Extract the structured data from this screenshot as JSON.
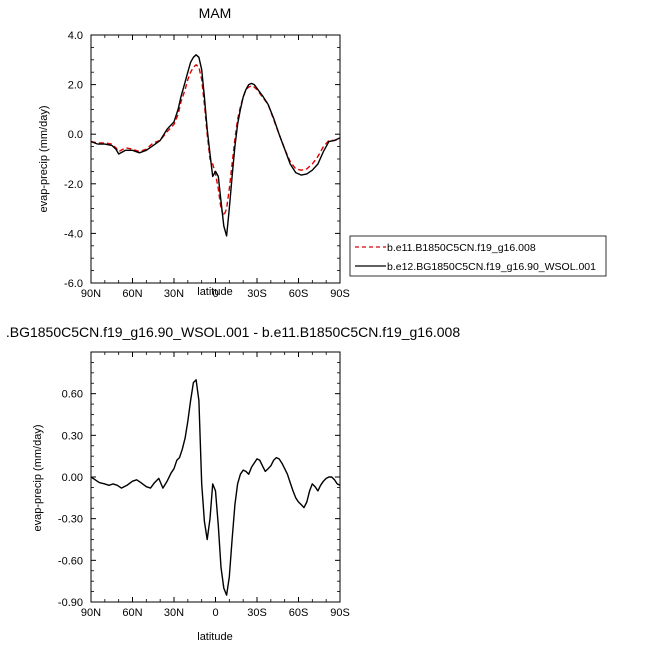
{
  "chart_data": [
    {
      "type": "line",
      "title": "MAM",
      "xlabel": "latitude",
      "ylabel": "evap-precip (mm/day)",
      "xlim": [
        -90,
        90
      ],
      "ylim": [
        -6,
        4
      ],
      "x_ticks": [
        -90,
        -60,
        -30,
        0,
        30,
        60,
        90
      ],
      "x_tick_labels": [
        "90N",
        "60N",
        "30N",
        "0",
        "30S",
        "60S",
        "90S"
      ],
      "y_ticks": [
        -6,
        -4,
        -2,
        0,
        2,
        4
      ],
      "y_tick_labels": [
        "-6.0",
        "-4.0",
        "-2.0",
        "0.0",
        "2.0",
        "4.0"
      ],
      "legend_position": "right",
      "series": [
        {
          "name": "b.e11.B1850C5CN.f19_g16.008",
          "color": "#dd0000",
          "dash": "dashed",
          "x": [
            -90,
            -85,
            -80,
            -75,
            -72,
            -70,
            -65,
            -60,
            -55,
            -50,
            -45,
            -40,
            -35,
            -30,
            -27,
            -25,
            -22,
            -20,
            -18,
            -16,
            -14,
            -12,
            -10,
            -8,
            -6,
            -4,
            -2,
            0,
            2,
            4,
            6,
            8,
            10,
            12,
            14,
            16,
            18,
            20,
            22,
            24,
            26,
            28,
            30,
            34,
            38,
            42,
            46,
            50,
            54,
            58,
            62,
            66,
            70,
            74,
            78,
            82,
            86,
            90
          ],
          "y": [
            -0.3,
            -0.35,
            -0.35,
            -0.4,
            -0.55,
            -0.7,
            -0.55,
            -0.6,
            -0.7,
            -0.6,
            -0.35,
            -0.25,
            0.1,
            0.4,
            0.8,
            1.3,
            1.8,
            2.2,
            2.5,
            2.7,
            2.8,
            2.7,
            2.2,
            1.2,
            0.0,
            -1.0,
            -1.2,
            -1.6,
            -2.2,
            -3.0,
            -3.3,
            -3.0,
            -2.2,
            -1.2,
            -0.2,
            0.6,
            1.1,
            1.5,
            1.8,
            1.9,
            1.95,
            1.9,
            1.8,
            1.5,
            1.2,
            0.6,
            0.0,
            -0.6,
            -1.1,
            -1.4,
            -1.45,
            -1.4,
            -1.2,
            -0.9,
            -0.5,
            -0.25,
            -0.25,
            -0.2
          ]
        },
        {
          "name": "b.e12.BG1850C5CN.f19_g16.90_WSOL.001",
          "color": "#000000",
          "dash": "solid",
          "x": [
            -90,
            -85,
            -80,
            -75,
            -72,
            -70,
            -65,
            -60,
            -55,
            -50,
            -45,
            -40,
            -35,
            -30,
            -27,
            -25,
            -22,
            -20,
            -18,
            -16,
            -14,
            -12,
            -10,
            -8,
            -6,
            -4,
            -2,
            0,
            2,
            4,
            6,
            8,
            10,
            12,
            14,
            16,
            18,
            20,
            22,
            24,
            26,
            28,
            30,
            34,
            38,
            42,
            46,
            50,
            54,
            58,
            62,
            66,
            70,
            74,
            78,
            82,
            86,
            90
          ],
          "y": [
            -0.3,
            -0.4,
            -0.4,
            -0.45,
            -0.6,
            -0.8,
            -0.65,
            -0.65,
            -0.75,
            -0.65,
            -0.45,
            -0.25,
            0.2,
            0.5,
            1.0,
            1.5,
            2.1,
            2.5,
            2.9,
            3.1,
            3.2,
            3.1,
            2.6,
            1.5,
            0.2,
            -0.8,
            -1.7,
            -1.5,
            -1.7,
            -2.7,
            -3.7,
            -4.1,
            -3.0,
            -1.7,
            -0.5,
            0.4,
            1.0,
            1.5,
            1.8,
            2.0,
            2.05,
            2.0,
            1.85,
            1.55,
            1.2,
            0.65,
            0.0,
            -0.6,
            -1.2,
            -1.55,
            -1.65,
            -1.6,
            -1.45,
            -1.2,
            -0.7,
            -0.3,
            -0.25,
            -0.15
          ]
        }
      ]
    },
    {
      "type": "line",
      "title": ".BG1850C5CN.f19_g16.90_WSOL.001 - b.e11.B1850C5CN.f19_g16.008",
      "xlabel": "latitude",
      "ylabel": "evap-precip (mm/day)",
      "xlim": [
        -90,
        90
      ],
      "ylim": [
        -0.9,
        0.9
      ],
      "x_ticks": [
        -90,
        -60,
        -30,
        0,
        30,
        60,
        90
      ],
      "x_tick_labels": [
        "90N",
        "60N",
        "30N",
        "0",
        "30S",
        "60S",
        "90S"
      ],
      "y_ticks": [
        -0.9,
        -0.6,
        -0.3,
        0.0,
        0.3,
        0.6
      ],
      "y_tick_labels": [
        "-0.90",
        "-0.60",
        "-0.30",
        "0.00",
        "0.30",
        "0.60"
      ],
      "series": [
        {
          "color": "#000000",
          "dash": "solid",
          "x": [
            -90,
            -87,
            -84,
            -80,
            -77,
            -74,
            -71,
            -68,
            -64,
            -60,
            -57,
            -54,
            -50,
            -47,
            -44,
            -41,
            -38,
            -35,
            -32,
            -30,
            -28,
            -26,
            -24,
            -22,
            -20,
            -18,
            -16,
            -14,
            -12,
            -10,
            -8,
            -6,
            -4,
            -2,
            0,
            2,
            4,
            6,
            8,
            10,
            12,
            14,
            16,
            18,
            20,
            22,
            24,
            26,
            28,
            30,
            32,
            34,
            36,
            38,
            40,
            42,
            44,
            46,
            48,
            50,
            52,
            54,
            56,
            58,
            60,
            62,
            64,
            66,
            68,
            70,
            72,
            74,
            76,
            78,
            80,
            82,
            84,
            86,
            88,
            90
          ],
          "y": [
            0.0,
            -0.02,
            -0.04,
            -0.05,
            -0.06,
            -0.05,
            -0.06,
            -0.08,
            -0.06,
            -0.03,
            -0.02,
            -0.04,
            -0.07,
            -0.08,
            -0.04,
            -0.01,
            -0.08,
            -0.03,
            0.03,
            0.06,
            0.12,
            0.14,
            0.2,
            0.28,
            0.4,
            0.55,
            0.68,
            0.7,
            0.55,
            -0.05,
            -0.32,
            -0.45,
            -0.3,
            -0.05,
            -0.1,
            -0.35,
            -0.65,
            -0.8,
            -0.85,
            -0.72,
            -0.45,
            -0.2,
            -0.05,
            0.02,
            0.05,
            0.04,
            0.02,
            0.07,
            0.1,
            0.13,
            0.12,
            0.08,
            0.04,
            0.06,
            0.08,
            0.12,
            0.14,
            0.13,
            0.1,
            0.06,
            0.02,
            -0.04,
            -0.1,
            -0.15,
            -0.18,
            -0.2,
            -0.22,
            -0.18,
            -0.1,
            -0.05,
            -0.07,
            -0.1,
            -0.06,
            -0.03,
            -0.01,
            0.0,
            0.0,
            -0.02,
            -0.05,
            -0.06
          ]
        }
      ]
    }
  ]
}
